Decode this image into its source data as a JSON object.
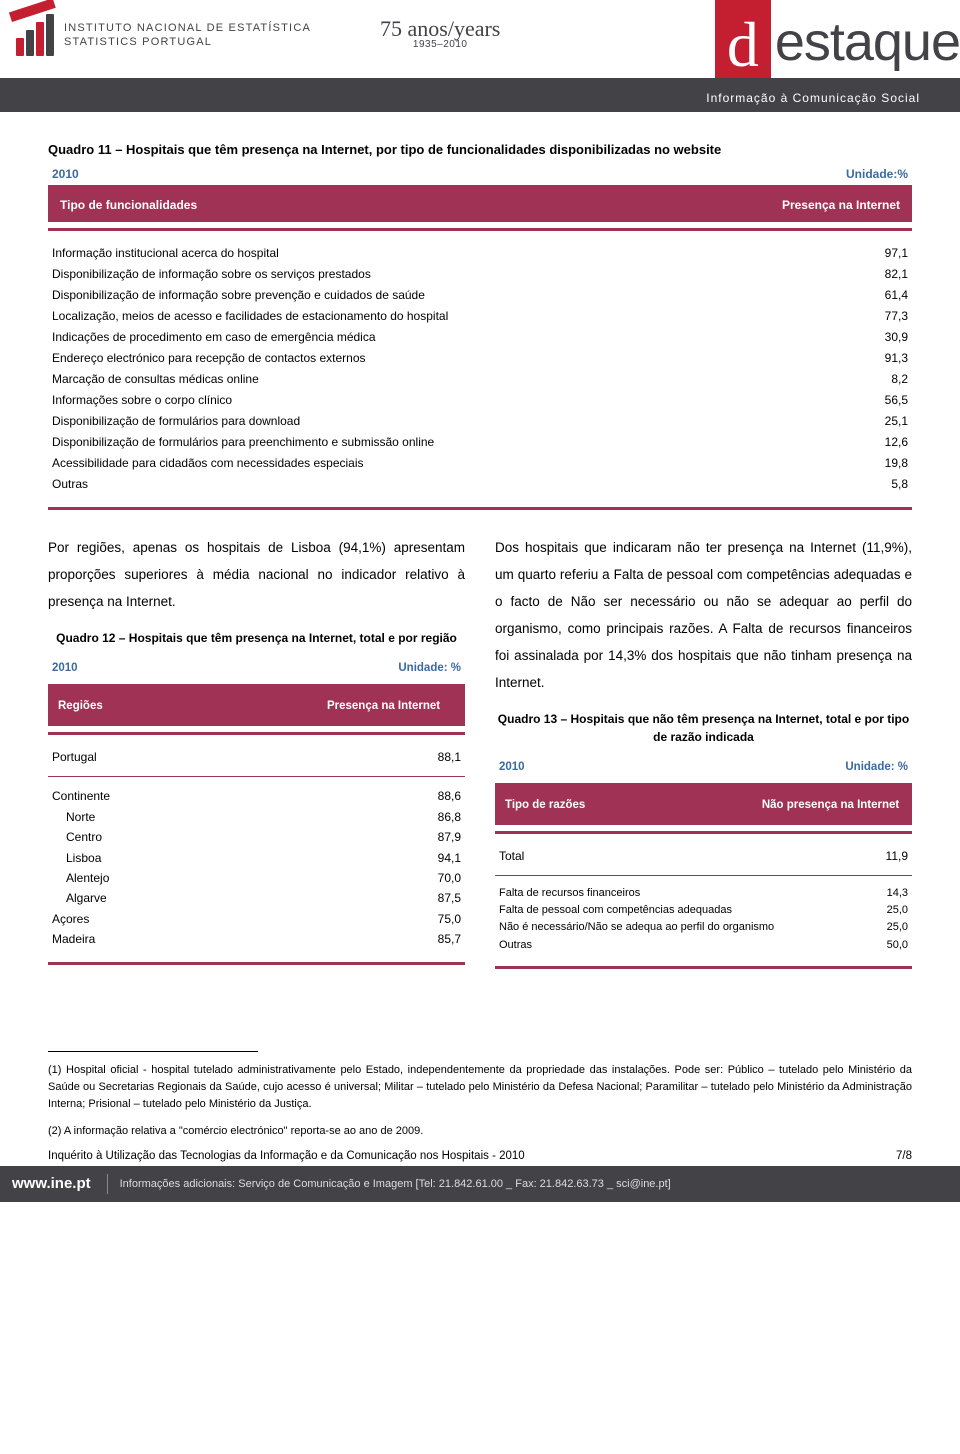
{
  "header": {
    "inst_line1": "INSTITUTO NACIONAL DE ESTATÍSTICA",
    "inst_line2": "STATISTICS PORTUGAL",
    "anniv_main": "75 anos/years",
    "anniv_sub": "1935–2010",
    "destaque_d": "d",
    "destaque_rest": "estaque",
    "strip": "Informação à Comunicação Social"
  },
  "q11": {
    "title": "Quadro 11 – Hospitais que têm presença na Internet, por tipo de funcionalidades disponibilizadas no website",
    "year": "2010",
    "unit": "Unidade:%",
    "h1": "Tipo de funcionalidades",
    "h2": "Presença na Internet",
    "rows": [
      {
        "label": "Informação institucional acerca do hospital",
        "val": "97,1"
      },
      {
        "label": "Disponibilização de informação sobre os serviços prestados",
        "val": "82,1"
      },
      {
        "label": "Disponibilização de informação sobre prevenção e cuidados de saúde",
        "val": "61,4"
      },
      {
        "label": "Localização, meios de acesso e facilidades de estacionamento do hospital",
        "val": "77,3"
      },
      {
        "label": "Indicações de procedimento em caso de emergência médica",
        "val": "30,9"
      },
      {
        "label": "Endereço electrónico para recepção de contactos externos",
        "val": "91,3"
      },
      {
        "label": "Marcação de consultas médicas online",
        "val": "8,2"
      },
      {
        "label": "Informações sobre o corpo clínico",
        "val": "56,5"
      },
      {
        "label": "Disponibilização de formulários para download",
        "val": "25,1"
      },
      {
        "label": "Disponibilização de formulários para preenchimento e submissão online",
        "val": "12,6"
      },
      {
        "label": "Acessibilidade para cidadãos com necessidades especiais",
        "val": "19,8"
      },
      {
        "label": "Outras",
        "val": "5,8"
      }
    ]
  },
  "left_para": "Por regiões, apenas os hospitais de Lisboa (94,1%) apresentam proporções superiores à média nacional no indicador relativo à presença na Internet.",
  "q12": {
    "title": "Quadro 12 – Hospitais que têm presença na Internet, total e por região",
    "year": "2010",
    "unit": "Unidade: %",
    "h1": "Regiões",
    "h2": "Presença na Internet",
    "total_label": "Portugal",
    "total_val": "88,1",
    "rows": [
      {
        "label": "Continente",
        "val": "88,6",
        "indent": false
      },
      {
        "label": "Norte",
        "val": "86,8",
        "indent": true
      },
      {
        "label": "Centro",
        "val": "87,9",
        "indent": true
      },
      {
        "label": "Lisboa",
        "val": "94,1",
        "indent": true
      },
      {
        "label": "Alentejo",
        "val": "70,0",
        "indent": true
      },
      {
        "label": "Algarve",
        "val": "87,5",
        "indent": true
      },
      {
        "label": "Açores",
        "val": "75,0",
        "indent": false
      },
      {
        "label": "Madeira",
        "val": "85,7",
        "indent": false
      }
    ]
  },
  "right_para": "Dos hospitais que indicaram não ter presença na Internet (11,9%), um quarto referiu a Falta de pessoal com competências adequadas e o facto de Não ser necessário ou não se adequar ao perfil do organismo, como principais razões. A Falta de recursos financeiros foi assinalada por 14,3% dos hospitais que não tinham presença na Internet.",
  "q13": {
    "title": "Quadro 13 – Hospitais que não têm presença na Internet, total e por tipo de razão indicada",
    "year": "2010",
    "unit": "Unidade: %",
    "h1": "Tipo de razões",
    "h2": "Não presença na Internet",
    "total_label": "Total",
    "total_val": "11,9",
    "rows": [
      {
        "label": "Falta de recursos financeiros",
        "val": "14,3"
      },
      {
        "label": "Falta de pessoal com competências adequadas",
        "val": "25,0"
      },
      {
        "label": "Não é necessário/Não se adequa ao perfil do organismo",
        "val": "25,0"
      },
      {
        "label": "Outras",
        "val": "50,0"
      }
    ]
  },
  "footnotes": {
    "n1": "(1) Hospital oficial - hospital tutelado administrativamente pelo Estado, independentemente da propriedade das instalações. Pode ser: Público – tutelado pelo Ministério da Saúde ou Secretarias Regionais da Saúde, cujo acesso é universal; Militar – tutelado pelo Ministério da Defesa Nacional; Paramilitar – tutelado pelo Ministério da Administração Interna; Prisional – tutelado pelo Ministério da Justiça.",
    "n2": "(2) A informação relativa a \"comércio electrónico\" reporta-se ao ano de 2009."
  },
  "source": {
    "text": "Inquérito à Utilização das Tecnologias da Informação e da Comunicação nos Hospitais - 2010",
    "page": "7/8"
  },
  "bottom": {
    "brand": "www.ine.pt",
    "info": "Informações adicionais: Serviço de Comunicação e Imagem  [Tel: 21.842.61.00 _ Fax: 21.842.63.73 _ sci@ine.pt]"
  },
  "colors": {
    "brand_dark": "#434247",
    "brand_red": "#c41f30",
    "table_header": "#a03355",
    "meta_blue": "#3b69a4"
  }
}
